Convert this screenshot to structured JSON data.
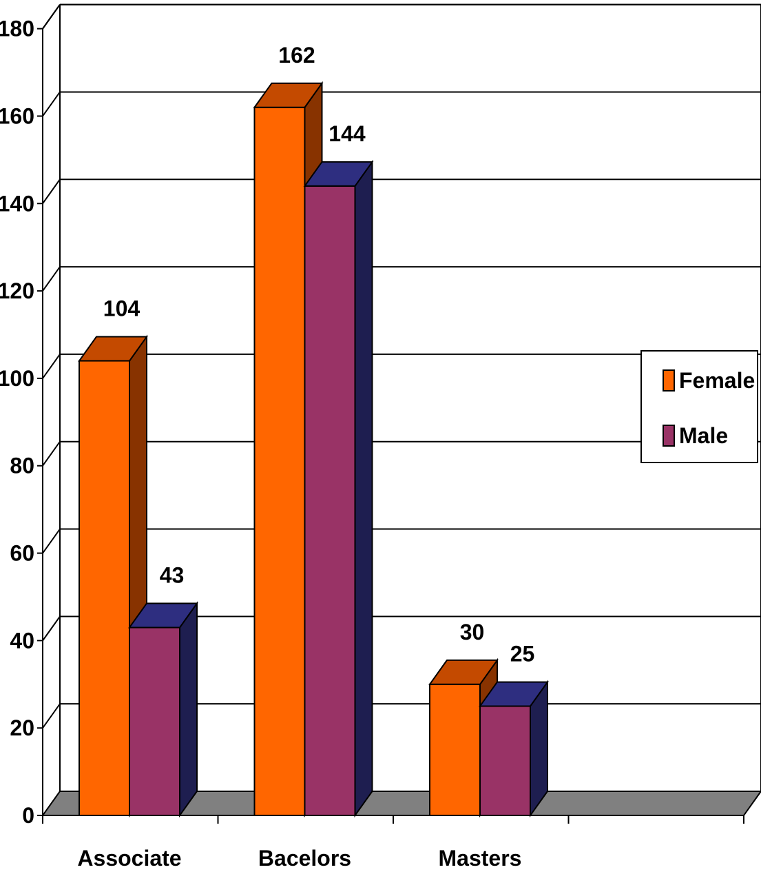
{
  "chart_data": {
    "type": "bar",
    "style": "3d-clustered-column",
    "categories": [
      "Associate",
      "Bacelors",
      "Masters"
    ],
    "series": [
      {
        "name": "Female",
        "values": [
          104,
          162,
          30
        ],
        "color": "#ff6600",
        "side_color": "#883300",
        "top_color": "#c44a00"
      },
      {
        "name": "Male",
        "values": [
          43,
          144,
          25
        ],
        "color": "#993366",
        "side_color": "#1e1e50",
        "top_color": "#2e2e80"
      }
    ],
    "data_labels": [
      [
        "104",
        "162",
        "30"
      ],
      [
        "43",
        "144",
        "25"
      ]
    ],
    "yticks": [
      "0",
      "20",
      "40",
      "60",
      "80",
      "100",
      "120",
      "140",
      "160",
      "180"
    ],
    "ylim": [
      0,
      180
    ],
    "grid": true,
    "floor_color": "#808080",
    "legend_position": "right"
  }
}
